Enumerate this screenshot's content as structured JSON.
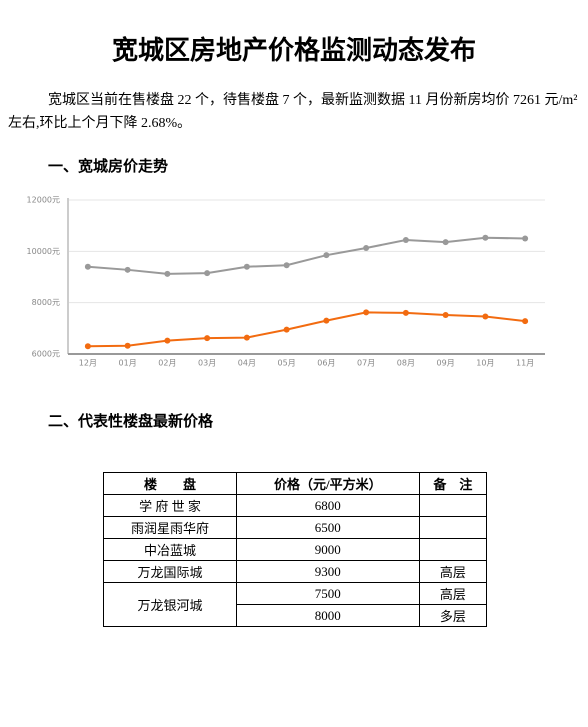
{
  "title": "宽城区房地产价格监测动态发布",
  "intro": "宽城区当前在售楼盘 22 个，待售楼盘 7 个，最新监测数据 11 月份新房均价 7261 元/m²左右,环比上个月下降 2.68%。",
  "section1": "一、宽城房价走势",
  "chart_data": {
    "type": "line",
    "categories": [
      "12月",
      "01月",
      "02月",
      "03月",
      "04月",
      "05月",
      "06月",
      "07月",
      "08月",
      "09月",
      "10月",
      "11月"
    ],
    "series": [
      {
        "color": "#999999",
        "values": [
          9400,
          9280,
          9120,
          9150,
          9400,
          9460,
          9850,
          10130,
          10440,
          10360,
          10530,
          10500
        ]
      },
      {
        "color": "#f26b10",
        "values": [
          6300,
          6320,
          6520,
          6620,
          6640,
          6950,
          7300,
          7620,
          7600,
          7520,
          7460,
          7280
        ]
      }
    ],
    "ylim": [
      6000,
      12000
    ],
    "yticks": [
      {
        "value": 6000,
        "label": "6000元"
      },
      {
        "value": 8000,
        "label": "8000元"
      },
      {
        "value": 10000,
        "label": "10000元"
      },
      {
        "value": 12000,
        "label": "12000元"
      }
    ],
    "grid": true
  },
  "section2": "二、代表性楼盘最新价格",
  "table": {
    "header": [
      "楼　　盘",
      "价格（元/平方米）",
      "备　注"
    ],
    "rows": [
      [
        "学 府 世 家",
        6800,
        null
      ],
      [
        "雨润星雨华府",
        6500,
        null
      ],
      [
        "中冶蓝城",
        9000,
        null
      ],
      [
        "万龙国际城",
        9300,
        "高层"
      ],
      [
        "万龙银河城",
        7500,
        "高层"
      ],
      [
        null,
        8000,
        "多层"
      ]
    ]
  }
}
